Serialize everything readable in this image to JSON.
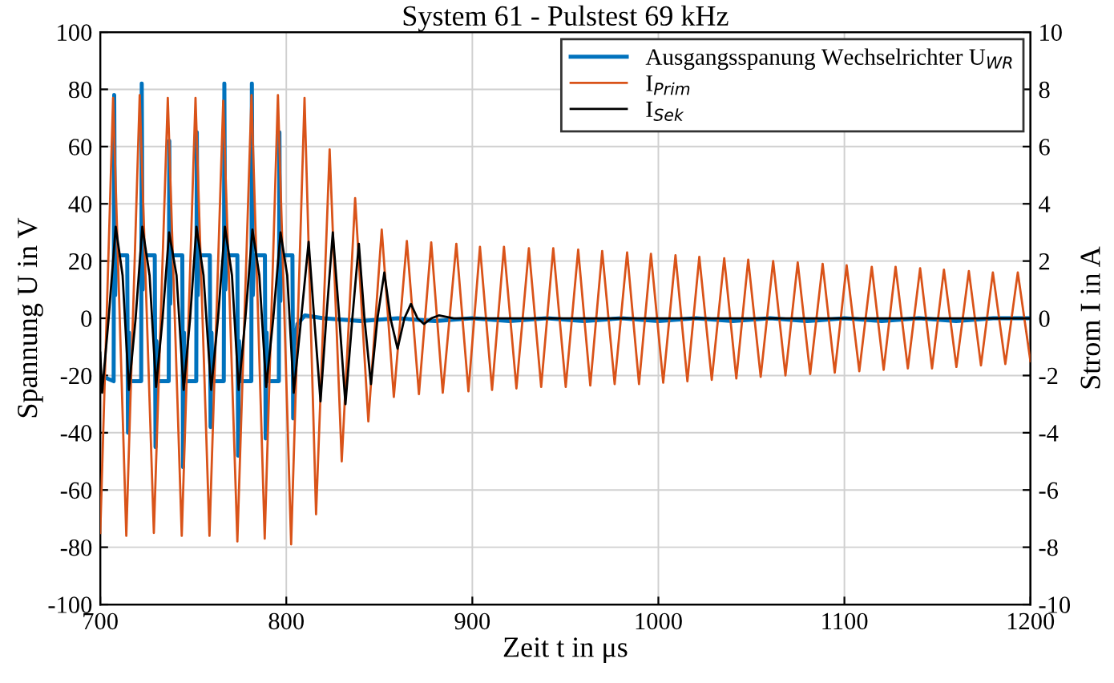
{
  "chart_data": {
    "type": "line",
    "title": "System 61 - Pulstest 69 kHz",
    "xlabel": "Zeit t in μs",
    "ylabel": "Spannung U in V",
    "y2label": "Strom I in A",
    "xlim": [
      700,
      1200
    ],
    "xticks": [
      700,
      800,
      900,
      1000,
      1100,
      1200
    ],
    "ylim": [
      -100,
      100
    ],
    "yticks": [
      -100,
      -80,
      -60,
      -40,
      -20,
      0,
      20,
      40,
      60,
      80,
      100
    ],
    "y2lim": [
      -10,
      10
    ],
    "y2ticks": [
      -10,
      -8,
      -6,
      -4,
      -2,
      0,
      2,
      4,
      6,
      8,
      10
    ],
    "grid": true,
    "legend": "top right",
    "line_style": "solid",
    "marker": "none",
    "series": [
      {
        "name": "Ausgangsspanung Wechselrichter U$_{WR}$",
        "color": "#0072bd",
        "axis": "y",
        "x": [
          700,
          707.2,
          707.5,
          708,
          708.6,
          714.5,
          714.9,
          715.4,
          716,
          722.0,
          722.3,
          722.8,
          723.4,
          729.3,
          729.7,
          730.2,
          730.8,
          736.8,
          737.1,
          737.6,
          738.2,
          744.1,
          744.5,
          745,
          745.6,
          751.6,
          751.9,
          752.4,
          753,
          758.9,
          759.3,
          759.8,
          760.4,
          766.4,
          766.7,
          767.2,
          767.8,
          773.7,
          774.1,
          774.6,
          775.2,
          781.2,
          781.5,
          782,
          782.6,
          788.5,
          788.9,
          789.4,
          790,
          796,
          796.3,
          796.8,
          797.4,
          803.3,
          803.7,
          804.2,
          806,
          810,
          820,
          840,
          860,
          880,
          900,
          920,
          940,
          960,
          980,
          1000,
          1020,
          1040,
          1060,
          1080,
          1100,
          1120,
          1140,
          1160,
          1180,
          1200
        ],
        "values": [
          -20,
          -22,
          78,
          8,
          22,
          22,
          -40,
          -5,
          -22,
          -22,
          82,
          10,
          22,
          22,
          -45,
          -8,
          -22,
          -22,
          62,
          5,
          22,
          22,
          -52,
          -5,
          -22,
          -22,
          65,
          8,
          22,
          22,
          -38,
          -5,
          -22,
          -22,
          82,
          10,
          22,
          22,
          -48,
          -8,
          -22,
          -22,
          82,
          8,
          22,
          22,
          -42,
          -5,
          -22,
          -22,
          65,
          6,
          22,
          22,
          -35,
          -10,
          -2,
          1,
          0,
          -1,
          0,
          -1,
          0,
          -1,
          0,
          -1,
          0,
          -1,
          0,
          -1,
          0,
          -1,
          0,
          -1,
          0,
          -1,
          0,
          0
        ]
      },
      {
        "name": "I$_{Prim}$",
        "color": "#d95319",
        "axis": "y2",
        "x": [
          700,
          706.9,
          714.0,
          721.2,
          728.8,
          736.3,
          743.8,
          751.2,
          758.7,
          766.1,
          773.7,
          781.3,
          788.4,
          795.5,
          802.6,
          809.8,
          816.0,
          823.3,
          829.8,
          837.0,
          844.1,
          851.3,
          857.8,
          864.8,
          871.3,
          877.9,
          884.1,
          891.4,
          897.9,
          904.1,
          910.6,
          917.0,
          923.7,
          930.4,
          937.0,
          943.5,
          950.2,
          956.9,
          963.4,
          969.8,
          976.5,
          983.2,
          989.6,
          996.0,
          1002.6,
          1009.2,
          1015.6,
          1022.0,
          1028.7,
          1035.4,
          1041.9,
          1048.3,
          1055.0,
          1061.7,
          1068.3,
          1074.9,
          1081.6,
          1088.3,
          1094.8,
          1101.2,
          1108.0,
          1114.7,
          1121.1,
          1127.5,
          1134.1,
          1140.7,
          1147.1,
          1153.5,
          1160.2,
          1166.9,
          1173.4,
          1179.8,
          1186.5,
          1193.2,
          1200
        ],
        "values": [
          -7.5,
          7.7,
          -7.6,
          7.8,
          -7.5,
          7.7,
          -7.6,
          7.7,
          -7.6,
          7.6,
          -7.8,
          7.8,
          -7.7,
          7.8,
          -7.9,
          7.7,
          -6.85,
          5.9,
          -5.0,
          4.2,
          -3.6,
          3.1,
          -2.75,
          2.7,
          -2.65,
          2.65,
          -2.6,
          2.6,
          -2.55,
          2.5,
          -2.5,
          2.5,
          -2.45,
          2.45,
          -2.4,
          2.45,
          -2.4,
          2.4,
          -2.35,
          2.35,
          -2.3,
          2.3,
          -2.3,
          2.25,
          -2.25,
          2.2,
          -2.2,
          2.15,
          -2.15,
          2.1,
          -2.1,
          2.05,
          -2.05,
          2.0,
          -2.0,
          1.95,
          -1.95,
          1.9,
          -1.9,
          1.85,
          -1.85,
          1.8,
          -1.8,
          1.8,
          -1.75,
          1.75,
          -1.75,
          1.7,
          -1.7,
          1.65,
          -1.65,
          1.6,
          -1.6,
          1.6,
          -1.5
        ]
      },
      {
        "name": "I$_{Sek}$",
        "color": "#000000",
        "axis": "y2",
        "x": [
          700,
          701,
          704.5,
          708.3,
          712,
          715.4,
          719,
          722.6,
          726.5,
          730,
          733.5,
          737,
          741,
          744.8,
          748.3,
          751.7,
          755.5,
          759.6,
          763.3,
          767,
          770.8,
          774.4,
          778,
          781.8,
          785.5,
          789.2,
          793,
          796.9,
          800.5,
          804,
          808,
          812,
          815,
          818.4,
          821.5,
          825,
          828.5,
          831.8,
          835.5,
          839,
          842,
          845.5,
          849,
          852.7,
          856,
          859.8,
          863.5,
          867,
          870.5,
          874,
          878,
          882,
          890,
          1200
        ],
        "values": [
          -1.2,
          -2.6,
          0,
          3.2,
          1.5,
          -2.5,
          0,
          3.2,
          1.5,
          -2.4,
          0,
          3.0,
          1.5,
          -2.5,
          0,
          3.2,
          1.5,
          -2.5,
          0,
          3.2,
          1.5,
          -2.5,
          0,
          3.1,
          1.5,
          -2.4,
          0,
          3.0,
          1.5,
          -2.6,
          0,
          2.67,
          0,
          -2.9,
          0,
          3.0,
          0,
          -3.0,
          0,
          2.6,
          0,
          -2.3,
          0,
          1.6,
          0,
          -1.06,
          0,
          0.5,
          0,
          -0.2,
          0,
          0.1,
          0,
          0
        ]
      }
    ]
  }
}
